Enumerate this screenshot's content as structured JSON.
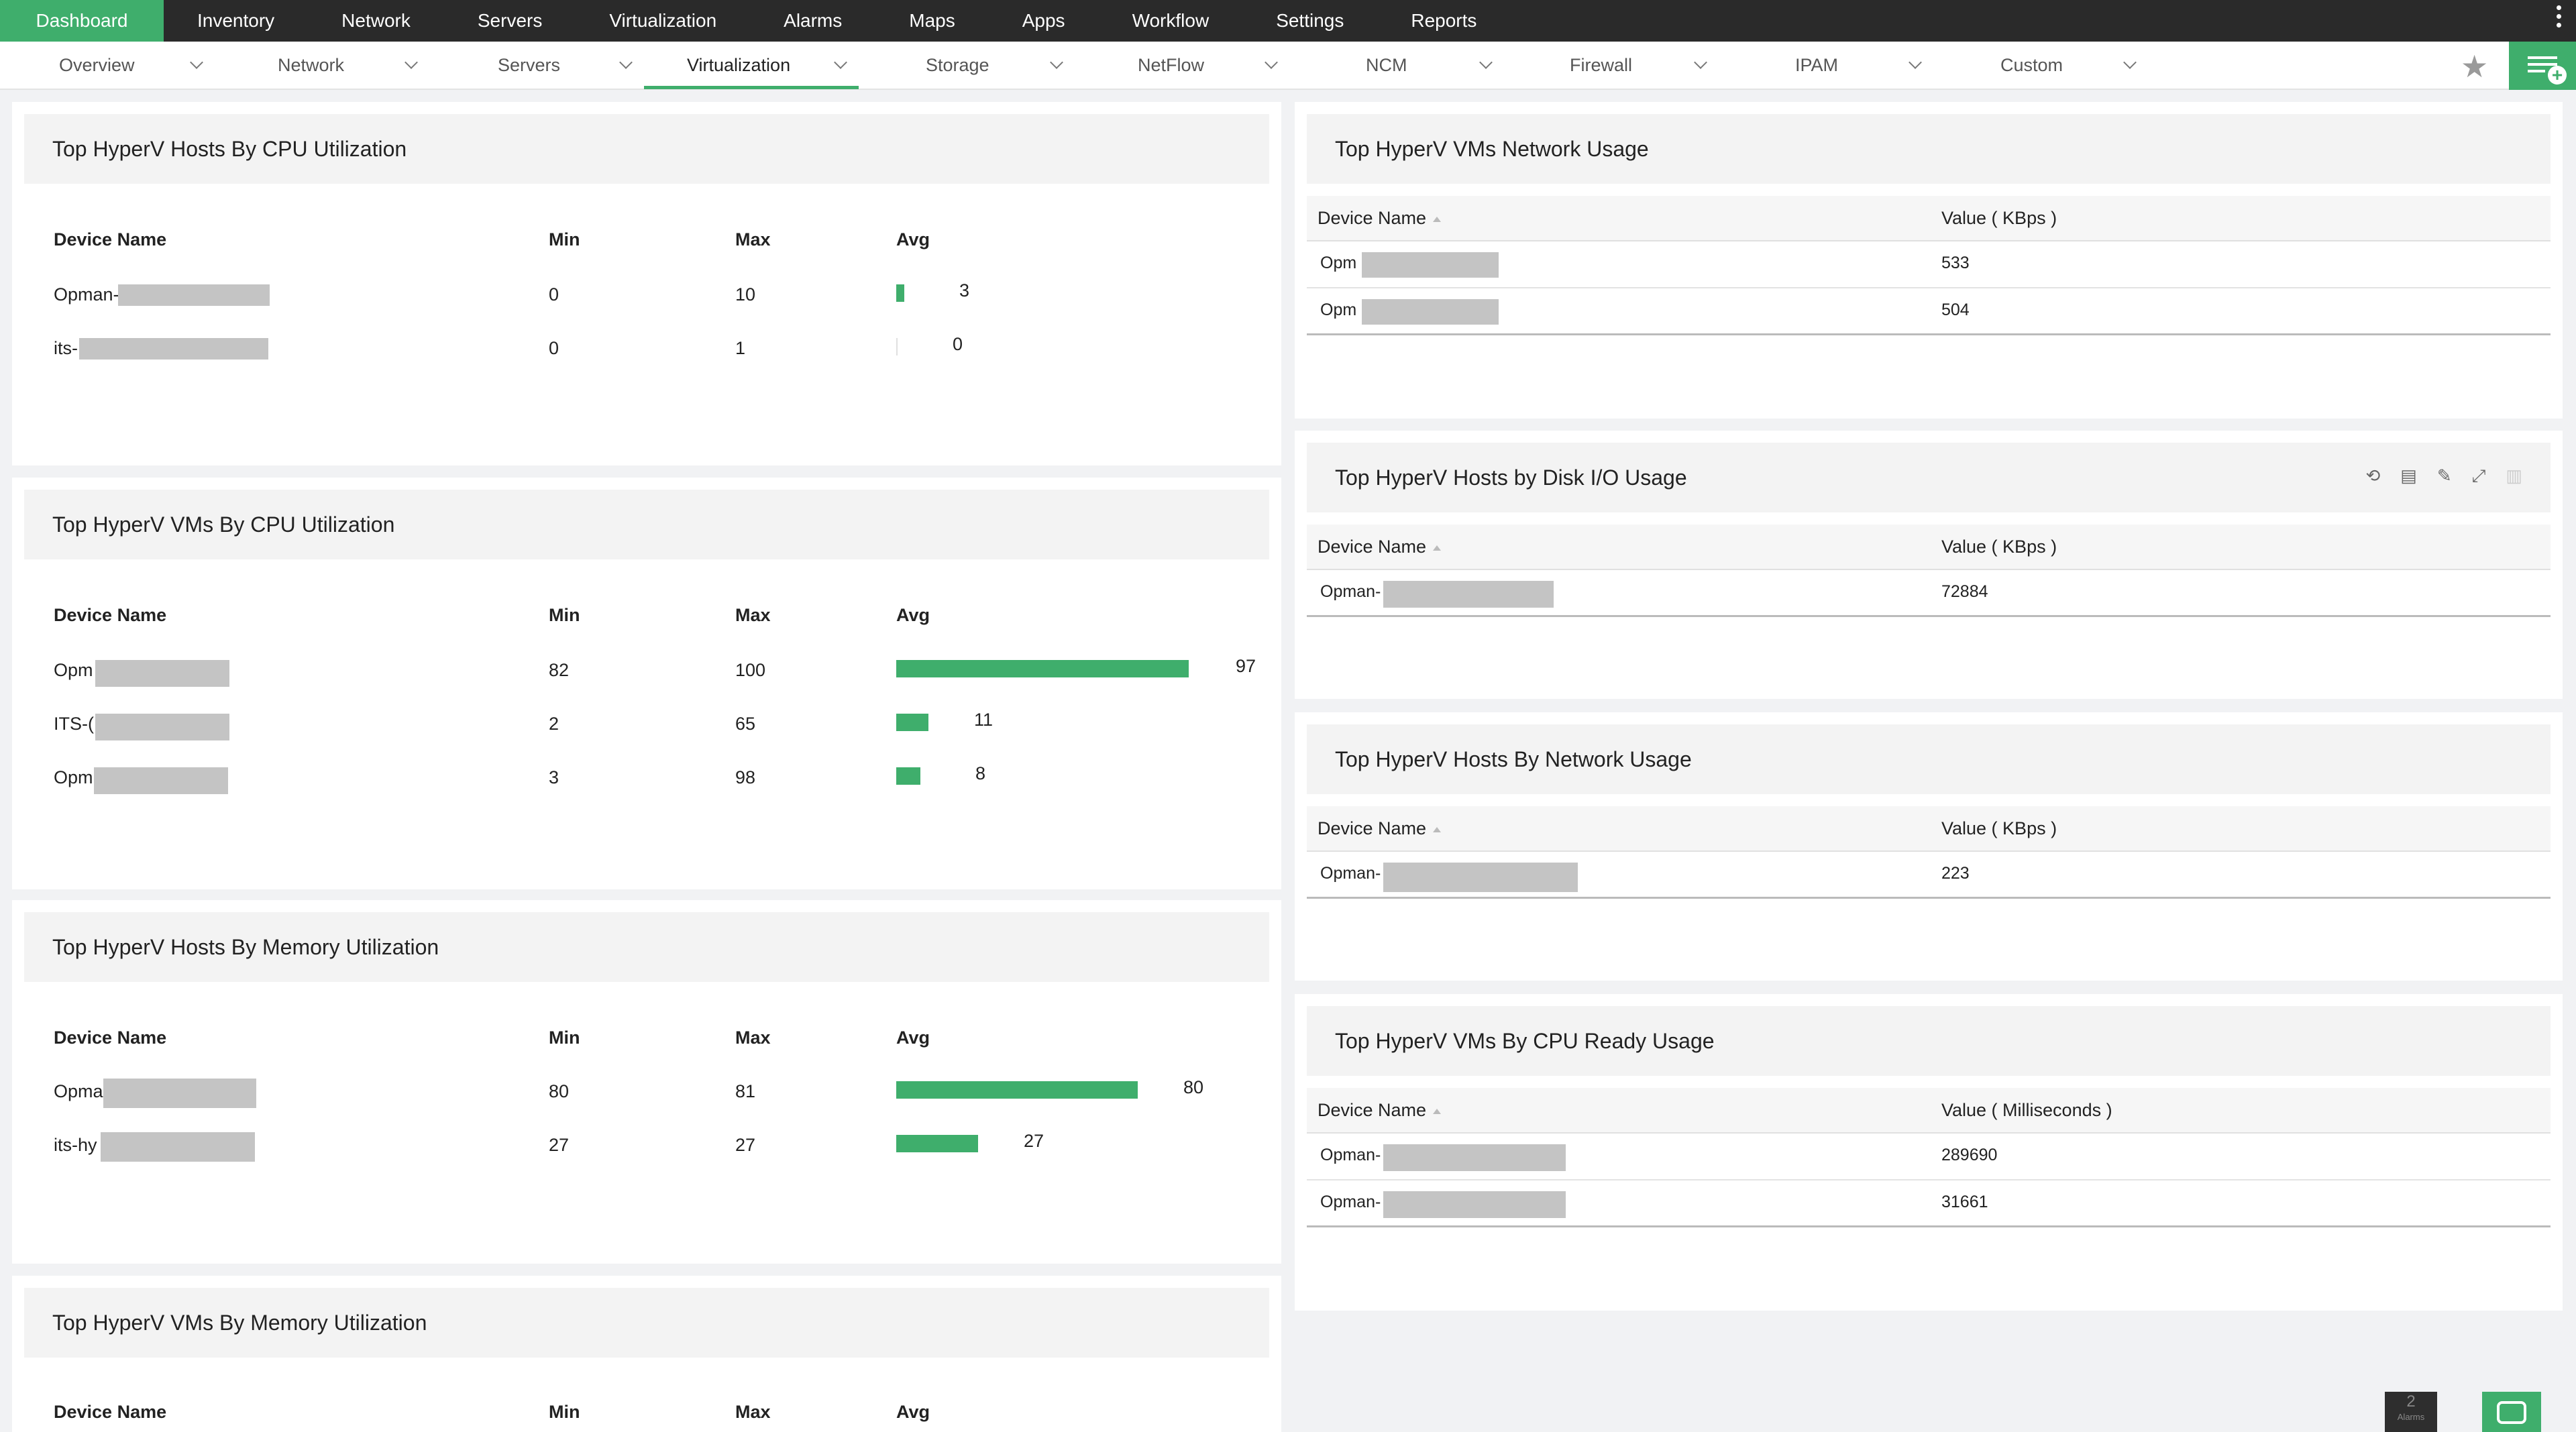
{
  "topnav": {
    "items": [
      "Dashboard",
      "Inventory",
      "Network",
      "Servers",
      "Virtualization",
      "Alarms",
      "Maps",
      "Apps",
      "Workflow",
      "Settings",
      "Reports"
    ],
    "active": "Dashboard"
  },
  "subnav": {
    "items": [
      "Overview",
      "Network",
      "Servers",
      "Virtualization",
      "Storage",
      "NetFlow",
      "NCM",
      "Firewall",
      "IPAM",
      "Custom"
    ],
    "active": "Virtualization"
  },
  "widgets": {
    "hosts_cpu": {
      "title": "Top HyperV Hosts By CPU Utilization",
      "headers": [
        "Device Name",
        "Min",
        "Max",
        "Avg"
      ],
      "rows": [
        {
          "name": "Opman-",
          "min": "0",
          "max": "10",
          "avg": "3",
          "pct": 3
        },
        {
          "name": "its-",
          "min": "0",
          "max": "1",
          "avg": "0",
          "pct": 0
        }
      ]
    },
    "vms_cpu": {
      "title": "Top HyperV VMs By CPU Utilization",
      "headers": [
        "Device Name",
        "Min",
        "Max",
        "Avg"
      ],
      "rows": [
        {
          "name": "Opm",
          "min": "82",
          "max": "100",
          "avg": "97",
          "pct": 97
        },
        {
          "name": "ITS-(",
          "min": "2",
          "max": "65",
          "avg": "11",
          "pct": 11
        },
        {
          "name": "Opm",
          "min": "3",
          "max": "98",
          "avg": "8",
          "pct": 8
        }
      ]
    },
    "hosts_mem": {
      "title": "Top HyperV Hosts By Memory Utilization",
      "headers": [
        "Device Name",
        "Min",
        "Max",
        "Avg"
      ],
      "rows": [
        {
          "name": "Opma",
          "min": "80",
          "max": "81",
          "avg": "80",
          "pct": 80
        },
        {
          "name": "its-hy",
          "min": "27",
          "max": "27",
          "avg": "27",
          "pct": 27
        }
      ]
    },
    "vms_mem": {
      "title": "Top HyperV VMs By Memory Utilization",
      "headers": [
        "Device Name",
        "Min",
        "Max",
        "Avg"
      ]
    },
    "vms_net": {
      "title": "Top HyperV VMs Network Usage",
      "headers": [
        "Device Name",
        "Value ( KBps )"
      ],
      "rows": [
        {
          "name": "Opm",
          "value": "533"
        },
        {
          "name": "Opm",
          "value": "504"
        }
      ]
    },
    "hosts_disk": {
      "title": "Top HyperV Hosts by Disk I/O Usage",
      "headers": [
        "Device Name",
        "Value ( KBps )"
      ],
      "rows": [
        {
          "name": "Opman-",
          "value": "72884"
        }
      ]
    },
    "hosts_net": {
      "title": "Top HyperV Hosts By Network Usage",
      "headers": [
        "Device Name",
        "Value ( KBps )"
      ],
      "rows": [
        {
          "name": "Opman-",
          "value": "223"
        }
      ]
    },
    "vms_ready": {
      "title": "Top HyperV VMs By CPU Ready Usage",
      "headers": [
        "Device Name",
        "Value ( Milliseconds )"
      ],
      "rows": [
        {
          "name": "Opman-",
          "value": "289690"
        },
        {
          "name": "Opman-",
          "value": "31661"
        }
      ]
    }
  },
  "footer": {
    "alarm_count": "2",
    "alarm_label": "Alarms"
  },
  "colors": {
    "accent": "#3fae6c",
    "topbar": "#2a2a2a"
  }
}
